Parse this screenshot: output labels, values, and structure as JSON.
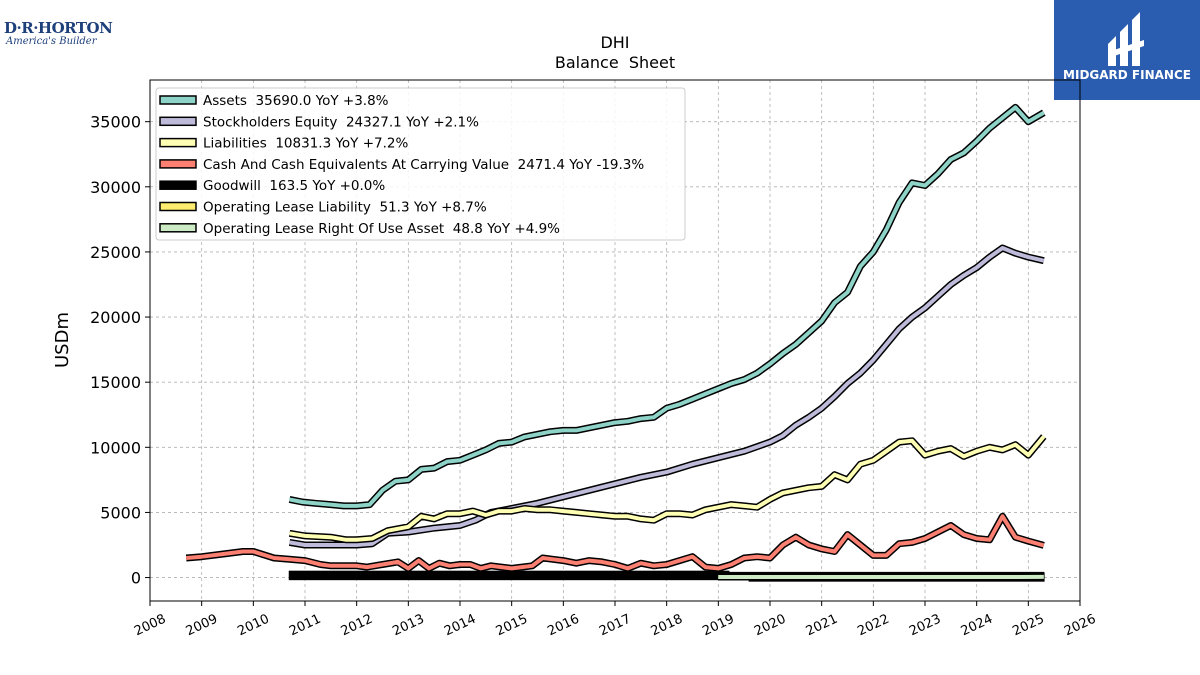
{
  "logos": {
    "left_brand": "D·R·HORTON",
    "left_tagline": "America's Builder",
    "right_name": "MIDGARD FINANCE"
  },
  "chart_data": {
    "type": "line",
    "title": "DHI",
    "subtitle": "Balance  Sheet",
    "xlabel": "",
    "ylabel": "USDm",
    "xlim": [
      2008,
      2026
    ],
    "ylim": [
      -1800,
      38200
    ],
    "x_ticks": [
      2008,
      2009,
      2010,
      2011,
      2012,
      2013,
      2014,
      2015,
      2016,
      2017,
      2018,
      2019,
      2020,
      2021,
      2022,
      2023,
      2024,
      2025,
      2026
    ],
    "y_ticks": [
      0,
      5000,
      10000,
      15000,
      20000,
      25000,
      30000,
      35000
    ],
    "grid": true,
    "legend_position": "top-left",
    "series": [
      {
        "name": "Assets  35690.0 YoY +3.8%",
        "color": "#8dd3c7",
        "points": [
          [
            2010.7,
            6000
          ],
          [
            2010.95,
            5800
          ],
          [
            2011.2,
            5700
          ],
          [
            2011.5,
            5600
          ],
          [
            2011.75,
            5500
          ],
          [
            2012.0,
            5500
          ],
          [
            2012.25,
            5600
          ],
          [
            2012.5,
            6700
          ],
          [
            2012.75,
            7400
          ],
          [
            2013.0,
            7500
          ],
          [
            2013.25,
            8300
          ],
          [
            2013.5,
            8400
          ],
          [
            2013.75,
            8900
          ],
          [
            2014.0,
            9000
          ],
          [
            2014.25,
            9400
          ],
          [
            2014.5,
            9800
          ],
          [
            2014.75,
            10300
          ],
          [
            2015.0,
            10400
          ],
          [
            2015.25,
            10800
          ],
          [
            2015.5,
            11000
          ],
          [
            2015.75,
            11200
          ],
          [
            2016.0,
            11300
          ],
          [
            2016.25,
            11300
          ],
          [
            2016.5,
            11500
          ],
          [
            2016.75,
            11700
          ],
          [
            2017.0,
            11900
          ],
          [
            2017.25,
            12000
          ],
          [
            2017.5,
            12200
          ],
          [
            2017.75,
            12300
          ],
          [
            2018.0,
            13000
          ],
          [
            2018.25,
            13300
          ],
          [
            2018.5,
            13700
          ],
          [
            2018.75,
            14100
          ],
          [
            2019.0,
            14500
          ],
          [
            2019.25,
            14900
          ],
          [
            2019.5,
            15200
          ],
          [
            2019.75,
            15700
          ],
          [
            2020.0,
            16400
          ],
          [
            2020.25,
            17200
          ],
          [
            2020.5,
            17900
          ],
          [
            2020.75,
            18800
          ],
          [
            2021.0,
            19700
          ],
          [
            2021.25,
            21100
          ],
          [
            2021.5,
            21900
          ],
          [
            2021.75,
            23900
          ],
          [
            2022.0,
            25000
          ],
          [
            2022.25,
            26700
          ],
          [
            2022.5,
            28800
          ],
          [
            2022.75,
            30300
          ],
          [
            2023.0,
            30100
          ],
          [
            2023.25,
            31000
          ],
          [
            2023.5,
            32100
          ],
          [
            2023.75,
            32600
          ],
          [
            2024.0,
            33500
          ],
          [
            2024.25,
            34500
          ],
          [
            2024.5,
            35300
          ],
          [
            2024.75,
            36100
          ],
          [
            2025.0,
            35000
          ],
          [
            2025.3,
            35690
          ]
        ]
      },
      {
        "name": "Stockholders Equity  24327.1 YoY +2.1%",
        "color": "#bebada",
        "points": [
          [
            2010.7,
            2700
          ],
          [
            2011.0,
            2500
          ],
          [
            2011.5,
            2500
          ],
          [
            2012.0,
            2500
          ],
          [
            2012.3,
            2600
          ],
          [
            2012.6,
            3400
          ],
          [
            2013.0,
            3500
          ],
          [
            2013.5,
            3800
          ],
          [
            2014.0,
            4000
          ],
          [
            2014.3,
            4400
          ],
          [
            2014.6,
            5000
          ],
          [
            2015.0,
            5300
          ],
          [
            2015.5,
            5700
          ],
          [
            2016.0,
            6200
          ],
          [
            2016.5,
            6700
          ],
          [
            2017.0,
            7200
          ],
          [
            2017.5,
            7700
          ],
          [
            2018.0,
            8100
          ],
          [
            2018.5,
            8700
          ],
          [
            2019.0,
            9200
          ],
          [
            2019.5,
            9700
          ],
          [
            2020.0,
            10400
          ],
          [
            2020.25,
            10900
          ],
          [
            2020.5,
            11700
          ],
          [
            2020.75,
            12300
          ],
          [
            2021.0,
            13000
          ],
          [
            2021.25,
            13900
          ],
          [
            2021.5,
            14900
          ],
          [
            2021.75,
            15700
          ],
          [
            2022.0,
            16700
          ],
          [
            2022.25,
            17900
          ],
          [
            2022.5,
            19100
          ],
          [
            2022.75,
            20000
          ],
          [
            2023.0,
            20700
          ],
          [
            2023.25,
            21600
          ],
          [
            2023.5,
            22500
          ],
          [
            2023.75,
            23200
          ],
          [
            2024.0,
            23800
          ],
          [
            2024.25,
            24600
          ],
          [
            2024.5,
            25300
          ],
          [
            2024.75,
            24900
          ],
          [
            2025.0,
            24600
          ],
          [
            2025.3,
            24327.1
          ]
        ]
      },
      {
        "name": "Liabilities  10831.3 YoY +7.2%",
        "color": "#ffffb3",
        "points": [
          [
            2010.7,
            3400
          ],
          [
            2011.0,
            3200
          ],
          [
            2011.5,
            3100
          ],
          [
            2011.8,
            2900
          ],
          [
            2012.0,
            2900
          ],
          [
            2012.3,
            3000
          ],
          [
            2012.6,
            3600
          ],
          [
            2013.0,
            3900
          ],
          [
            2013.25,
            4700
          ],
          [
            2013.5,
            4500
          ],
          [
            2013.75,
            4900
          ],
          [
            2014.0,
            4900
          ],
          [
            2014.25,
            5100
          ],
          [
            2014.5,
            4800
          ],
          [
            2014.75,
            5100
          ],
          [
            2015.0,
            5100
          ],
          [
            2015.25,
            5300
          ],
          [
            2015.5,
            5200
          ],
          [
            2015.75,
            5200
          ],
          [
            2016.0,
            5100
          ],
          [
            2016.25,
            5000
          ],
          [
            2016.5,
            4900
          ],
          [
            2016.75,
            4800
          ],
          [
            2017.0,
            4700
          ],
          [
            2017.25,
            4700
          ],
          [
            2017.5,
            4500
          ],
          [
            2017.75,
            4400
          ],
          [
            2018.0,
            4900
          ],
          [
            2018.25,
            4900
          ],
          [
            2018.5,
            4800
          ],
          [
            2018.75,
            5200
          ],
          [
            2019.0,
            5400
          ],
          [
            2019.25,
            5600
          ],
          [
            2019.5,
            5500
          ],
          [
            2019.75,
            5400
          ],
          [
            2020.0,
            6000
          ],
          [
            2020.25,
            6500
          ],
          [
            2020.5,
            6700
          ],
          [
            2020.75,
            6900
          ],
          [
            2021.0,
            7000
          ],
          [
            2021.25,
            7900
          ],
          [
            2021.5,
            7500
          ],
          [
            2021.75,
            8700
          ],
          [
            2022.0,
            9000
          ],
          [
            2022.25,
            9700
          ],
          [
            2022.5,
            10400
          ],
          [
            2022.75,
            10500
          ],
          [
            2023.0,
            9400
          ],
          [
            2023.25,
            9700
          ],
          [
            2023.5,
            9900
          ],
          [
            2023.75,
            9300
          ],
          [
            2024.0,
            9700
          ],
          [
            2024.25,
            10000
          ],
          [
            2024.5,
            9800
          ],
          [
            2024.75,
            10200
          ],
          [
            2025.0,
            9400
          ],
          [
            2025.3,
            10831.3
          ]
        ]
      },
      {
        "name": "Cash And Cash Equivalents At Carrying Value  2471.4 YoY -19.3%",
        "color": "#fb8072",
        "points": [
          [
            2008.7,
            1500
          ],
          [
            2009.0,
            1600
          ],
          [
            2009.4,
            1800
          ],
          [
            2009.8,
            2000
          ],
          [
            2010.0,
            2000
          ],
          [
            2010.4,
            1500
          ],
          [
            2010.7,
            1400
          ],
          [
            2011.0,
            1300
          ],
          [
            2011.3,
            1000
          ],
          [
            2011.5,
            900
          ],
          [
            2011.7,
            900
          ],
          [
            2012.0,
            900
          ],
          [
            2012.2,
            800
          ],
          [
            2012.5,
            1000
          ],
          [
            2012.8,
            1200
          ],
          [
            2013.0,
            700
          ],
          [
            2013.2,
            1300
          ],
          [
            2013.4,
            700
          ],
          [
            2013.6,
            1100
          ],
          [
            2013.8,
            900
          ],
          [
            2014.0,
            1000
          ],
          [
            2014.2,
            1000
          ],
          [
            2014.4,
            700
          ],
          [
            2014.6,
            900
          ],
          [
            2014.8,
            800
          ],
          [
            2015.0,
            700
          ],
          [
            2015.2,
            800
          ],
          [
            2015.4,
            900
          ],
          [
            2015.6,
            1500
          ],
          [
            2015.8,
            1400
          ],
          [
            2016.0,
            1300
          ],
          [
            2016.25,
            1100
          ],
          [
            2016.5,
            1300
          ],
          [
            2016.75,
            1200
          ],
          [
            2017.0,
            1000
          ],
          [
            2017.25,
            700
          ],
          [
            2017.5,
            1100
          ],
          [
            2017.75,
            900
          ],
          [
            2018.0,
            1000
          ],
          [
            2018.25,
            1300
          ],
          [
            2018.5,
            1600
          ],
          [
            2018.75,
            800
          ],
          [
            2019.0,
            700
          ],
          [
            2019.25,
            1000
          ],
          [
            2019.5,
            1500
          ],
          [
            2019.75,
            1600
          ],
          [
            2020.0,
            1500
          ],
          [
            2020.25,
            2500
          ],
          [
            2020.5,
            3100
          ],
          [
            2020.75,
            2500
          ],
          [
            2021.0,
            2200
          ],
          [
            2021.25,
            2000
          ],
          [
            2021.5,
            3300
          ],
          [
            2021.75,
            2500
          ],
          [
            2022.0,
            1700
          ],
          [
            2022.25,
            1700
          ],
          [
            2022.5,
            2600
          ],
          [
            2022.75,
            2700
          ],
          [
            2023.0,
            3000
          ],
          [
            2023.25,
            3500
          ],
          [
            2023.5,
            4000
          ],
          [
            2023.75,
            3300
          ],
          [
            2024.0,
            3000
          ],
          [
            2024.25,
            2900
          ],
          [
            2024.5,
            4700
          ],
          [
            2024.75,
            3100
          ],
          [
            2025.0,
            2800
          ],
          [
            2025.3,
            2471.4
          ]
        ]
      },
      {
        "name": "Goodwill  163.5 YoY +0.0%",
        "color": "#000000",
        "points": [
          [
            2010.7,
            80
          ],
          [
            2013.0,
            80
          ],
          [
            2013.3,
            160
          ],
          [
            2016.0,
            160
          ],
          [
            2018.0,
            163.5
          ],
          [
            2025.3,
            163.5
          ]
        ]
      },
      {
        "name": "Operating Lease Liability  51.3 YoY +8.7%",
        "color": "#ffed6f",
        "points": [
          [
            2019.0,
            40
          ],
          [
            2020.0,
            45
          ],
          [
            2022.0,
            48
          ],
          [
            2024.0,
            47
          ],
          [
            2025.3,
            51.3
          ]
        ]
      },
      {
        "name": "Operating Lease Right Of Use Asset  48.8 YoY +4.9%",
        "color": "#ccebc5",
        "points": [
          [
            2019.0,
            40
          ],
          [
            2020.0,
            44
          ],
          [
            2022.0,
            46
          ],
          [
            2024.0,
            46
          ],
          [
            2025.3,
            48.8
          ]
        ]
      }
    ],
    "fills": [
      {
        "series": "Goodwill  163.5 YoY +0.0%",
        "color": "#000000",
        "x_range": [
          2010.7,
          2019.2
        ]
      },
      {
        "series": "Operating Lease Right Of Use Asset  48.8 YoY +4.9%",
        "color": "#ccebc5",
        "x_range": [
          2019.6,
          2025.3
        ]
      }
    ]
  }
}
